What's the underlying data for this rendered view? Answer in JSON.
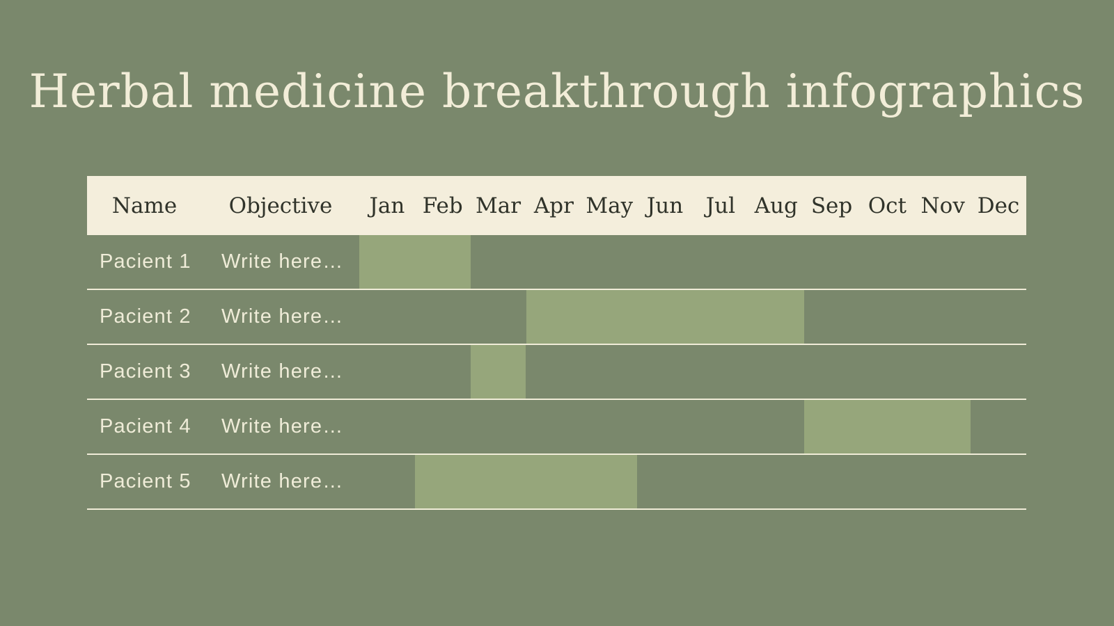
{
  "title": "Herbal medicine breakthrough infographics",
  "colors": {
    "background": "#7A886C",
    "header_background": "#F4EEDC",
    "header_text": "#30332A",
    "bar": "#96A67B",
    "row_text": "#EFECD8",
    "separator_line": "#F0ECD8",
    "title_text": "#F2EDD8"
  },
  "table": {
    "header": {
      "name_label": "Name",
      "objective_label": "Objective",
      "months": [
        "Jan",
        "Feb",
        "Mar",
        "Apr",
        "May",
        "Jun",
        "Jul",
        "Aug",
        "Sep",
        "Oct",
        "Nov",
        "Dec"
      ]
    },
    "rows": [
      {
        "name": "Pacient 1",
        "objective": "Write here…",
        "bar": {
          "start_month": "Jan",
          "end_month": "Feb",
          "start_index": 0,
          "span": 2
        }
      },
      {
        "name": "Pacient 2",
        "objective": "Write here…",
        "bar": {
          "start_month": "Apr",
          "end_month": "Aug",
          "start_index": 3,
          "span": 5
        }
      },
      {
        "name": "Pacient 3",
        "objective": "Write here…",
        "bar": {
          "start_month": "Mar",
          "end_month": "Mar",
          "start_index": 2,
          "span": 1
        }
      },
      {
        "name": "Pacient 4",
        "objective": "Write here…",
        "bar": {
          "start_month": "Sep",
          "end_month": "Nov",
          "start_index": 8,
          "span": 3
        }
      },
      {
        "name": "Pacient 5",
        "objective": "Write here…",
        "bar": {
          "start_month": "Feb",
          "end_month": "May",
          "start_index": 1,
          "span": 4
        }
      }
    ]
  },
  "chart_data": {
    "type": "bar",
    "subtype": "gantt",
    "title": "Herbal medicine breakthrough infographics",
    "categories": [
      "Pacient 1",
      "Pacient 2",
      "Pacient 3",
      "Pacient 4",
      "Pacient 5"
    ],
    "x_labels": [
      "Jan",
      "Feb",
      "Mar",
      "Apr",
      "May",
      "Jun",
      "Jul",
      "Aug",
      "Sep",
      "Oct",
      "Nov",
      "Dec"
    ],
    "series": [
      {
        "name": "Pacient 1",
        "start": "Jan",
        "end": "Feb",
        "start_index": 0,
        "duration_months": 2
      },
      {
        "name": "Pacient 2",
        "start": "Apr",
        "end": "Aug",
        "start_index": 3,
        "duration_months": 5
      },
      {
        "name": "Pacient 3",
        "start": "Mar",
        "end": "Mar",
        "start_index": 2,
        "duration_months": 1
      },
      {
        "name": "Pacient 4",
        "start": "Sep",
        "end": "Nov",
        "start_index": 8,
        "duration_months": 3
      },
      {
        "name": "Pacient 5",
        "start": "Feb",
        "end": "May",
        "start_index": 1,
        "duration_months": 4
      }
    ],
    "xlim": [
      0,
      12
    ],
    "grid": false,
    "legend": false
  }
}
